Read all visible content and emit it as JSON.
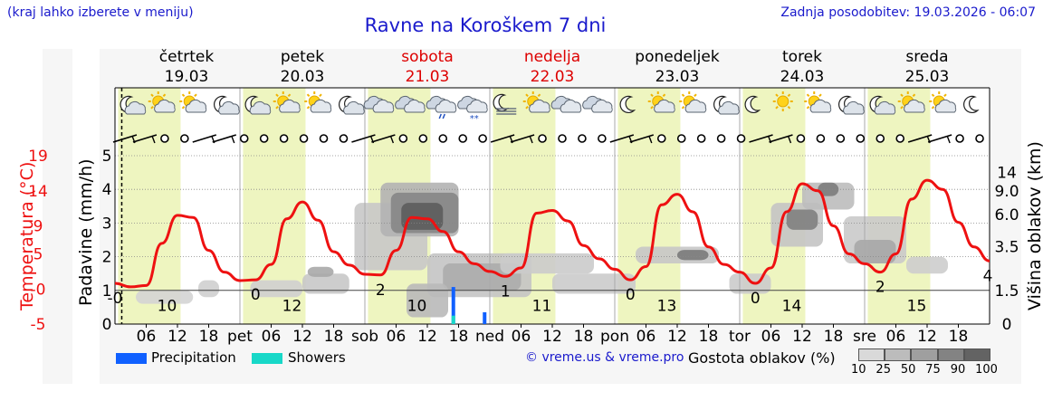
{
  "header": {
    "left_note": "(kraj lahko izberete v meniju)",
    "title": "Ravne na Koroškem 7 dni",
    "updated": "Zadnja posodobitev: 19.03.2026 - 06:07"
  },
  "axes": {
    "temp_label": "Temperatura (°C)",
    "precip_label": "Padavine (mm/h)",
    "cloud_label": "Višina oblakov (km)",
    "temp_ticks": [
      "19",
      "14",
      "9",
      "5",
      "-0",
      "-5"
    ],
    "precip_ticks": [
      "5",
      "4",
      "3",
      "2",
      "1",
      "0"
    ],
    "cloud_ticks": [
      "14",
      "9.0",
      "6.0",
      "3.5",
      "1.5",
      "0"
    ]
  },
  "days": [
    {
      "name": "četrtek",
      "date": "19.03",
      "weekend": false
    },
    {
      "name": "petek",
      "date": "20.03",
      "weekend": false
    },
    {
      "name": "sobota",
      "date": "21.03",
      "weekend": true
    },
    {
      "name": "nedelja",
      "date": "22.03",
      "weekend": true
    },
    {
      "name": "ponedeljek",
      "date": "23.03",
      "weekend": false
    },
    {
      "name": "torek",
      "date": "24.03",
      "weekend": false
    },
    {
      "name": "sreda",
      "date": "25.03",
      "weekend": false
    }
  ],
  "x_ticks": {
    "hour_labels": [
      "06",
      "12",
      "18"
    ],
    "day_abbr": [
      "pet",
      "sob",
      "ned",
      "pon",
      "tor",
      "sre"
    ]
  },
  "legend": {
    "precip": "Precipitation",
    "showers": "Showers",
    "copyright": "© vreme.us & vreme.pro",
    "cloud_density": "Gostota oblakov (%)",
    "scale": [
      "10",
      "25",
      "50",
      "75",
      "90",
      "100"
    ]
  },
  "colors": {
    "temp_line": "#ee1111",
    "daylight": "#eef5c0",
    "precip": "#1060ff",
    "showers": "#18d8c8",
    "title_blue": "#1a1acc",
    "weekend_red": "#dd0000"
  },
  "icons": [
    "moon-cloud",
    "sun-cloud",
    "sun-cloud",
    "moon-cloud",
    "moon-cloud",
    "sun-cloud",
    "sun-cloud",
    "moon-cloud",
    "cloud",
    "cloud",
    "rain-cloud",
    "snow-cloud",
    "fog-moon",
    "sun-cloud",
    "cloud",
    "cloud",
    "moon",
    "sun-cloud",
    "sun-cloud",
    "moon-cloud",
    "moon",
    "sun",
    "sun-cloud",
    "moon-cloud",
    "moon-cloud",
    "sun-cloud",
    "sun-cloud",
    "moon"
  ],
  "chart_data": {
    "type": "line",
    "title": "Ravne na Koroškem 7 dni",
    "xlabel": "",
    "ylabel": "Temperatura (°C)",
    "ylim": [
      -5,
      19
    ],
    "x_hours": [
      0,
      3,
      6,
      9,
      12,
      15,
      18,
      21,
      24,
      27,
      30,
      33,
      36,
      39,
      42,
      45,
      48,
      51,
      54,
      57,
      60,
      63,
      66,
      69,
      72,
      75,
      78,
      81,
      84,
      87,
      90,
      93,
      96,
      99,
      102,
      105,
      108,
      111,
      114,
      117,
      120,
      123,
      126,
      129,
      132,
      135,
      138,
      141,
      144,
      147,
      150,
      153,
      156,
      159,
      162,
      165,
      168
    ],
    "series": [
      {
        "name": "Temperatura",
        "values": [
          0.8,
          0.3,
          0.5,
          6.5,
          10.5,
          10.2,
          5.5,
          2.4,
          1.2,
          1.3,
          3.5,
          10,
          12.4,
          9.8,
          5.3,
          3.4,
          2.1,
          2.0,
          5.5,
          10.2,
          10.0,
          8.2,
          5.3,
          3.6,
          2.5,
          1.8,
          3.0,
          10.8,
          11.2,
          9.7,
          6.2,
          4.3,
          2.8,
          1.3,
          3.2,
          12.0,
          13.5,
          11.0,
          6.0,
          3.5,
          2.4,
          0.8,
          3.0,
          11.0,
          15.0,
          14.0,
          9.0,
          5.0,
          3.6,
          2.4,
          5.0,
          12.8,
          15.5,
          14.2,
          9.5,
          6.0,
          4.0
        ]
      }
    ],
    "temp_annotations": [
      {
        "hour": 0,
        "text": "-0"
      },
      {
        "hour": 10,
        "text": "10"
      },
      {
        "hour": 27,
        "text": "0"
      },
      {
        "hour": 34,
        "text": "12"
      },
      {
        "hour": 51,
        "text": "2"
      },
      {
        "hour": 58,
        "text": "10"
      },
      {
        "hour": 75,
        "text": "1"
      },
      {
        "hour": 82,
        "text": "11"
      },
      {
        "hour": 99,
        "text": "0"
      },
      {
        "hour": 106,
        "text": "13"
      },
      {
        "hour": 123,
        "text": "0"
      },
      {
        "hour": 130,
        "text": "14"
      },
      {
        "hour": 147,
        "text": "2"
      },
      {
        "hour": 154,
        "text": "15"
      },
      {
        "hour": 168,
        "text": "4"
      }
    ],
    "precipitation": [
      {
        "hour": 65,
        "mm": 1.1,
        "kind": "precip"
      },
      {
        "hour": 65,
        "mm": 0.25,
        "kind": "showers"
      },
      {
        "hour": 71,
        "mm": 0.35,
        "kind": "precip"
      }
    ]
  }
}
